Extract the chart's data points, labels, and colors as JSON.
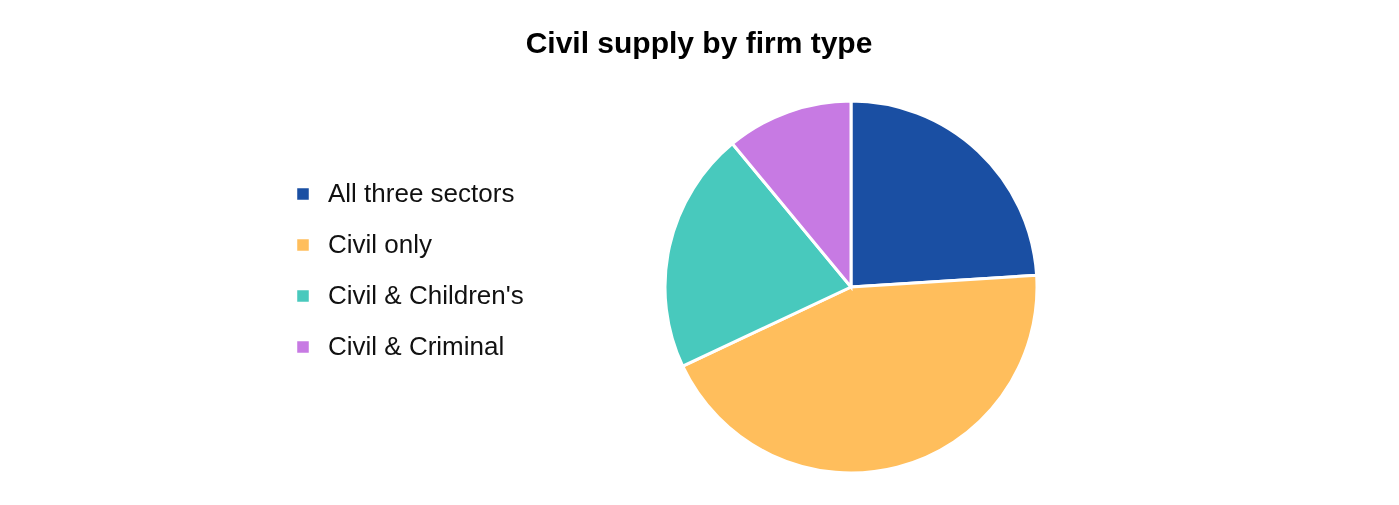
{
  "chart_data": {
    "type": "pie",
    "title": "Civil supply by firm type",
    "categories": [
      "All three sectors",
      "Civil only",
      "Civil & Children's",
      "Civil & Criminal"
    ],
    "values": [
      24,
      44,
      21,
      11
    ],
    "colors": [
      "#1a4fa3",
      "#ffbe5c",
      "#48c9bd",
      "#c77ae3"
    ],
    "legend": "left"
  }
}
